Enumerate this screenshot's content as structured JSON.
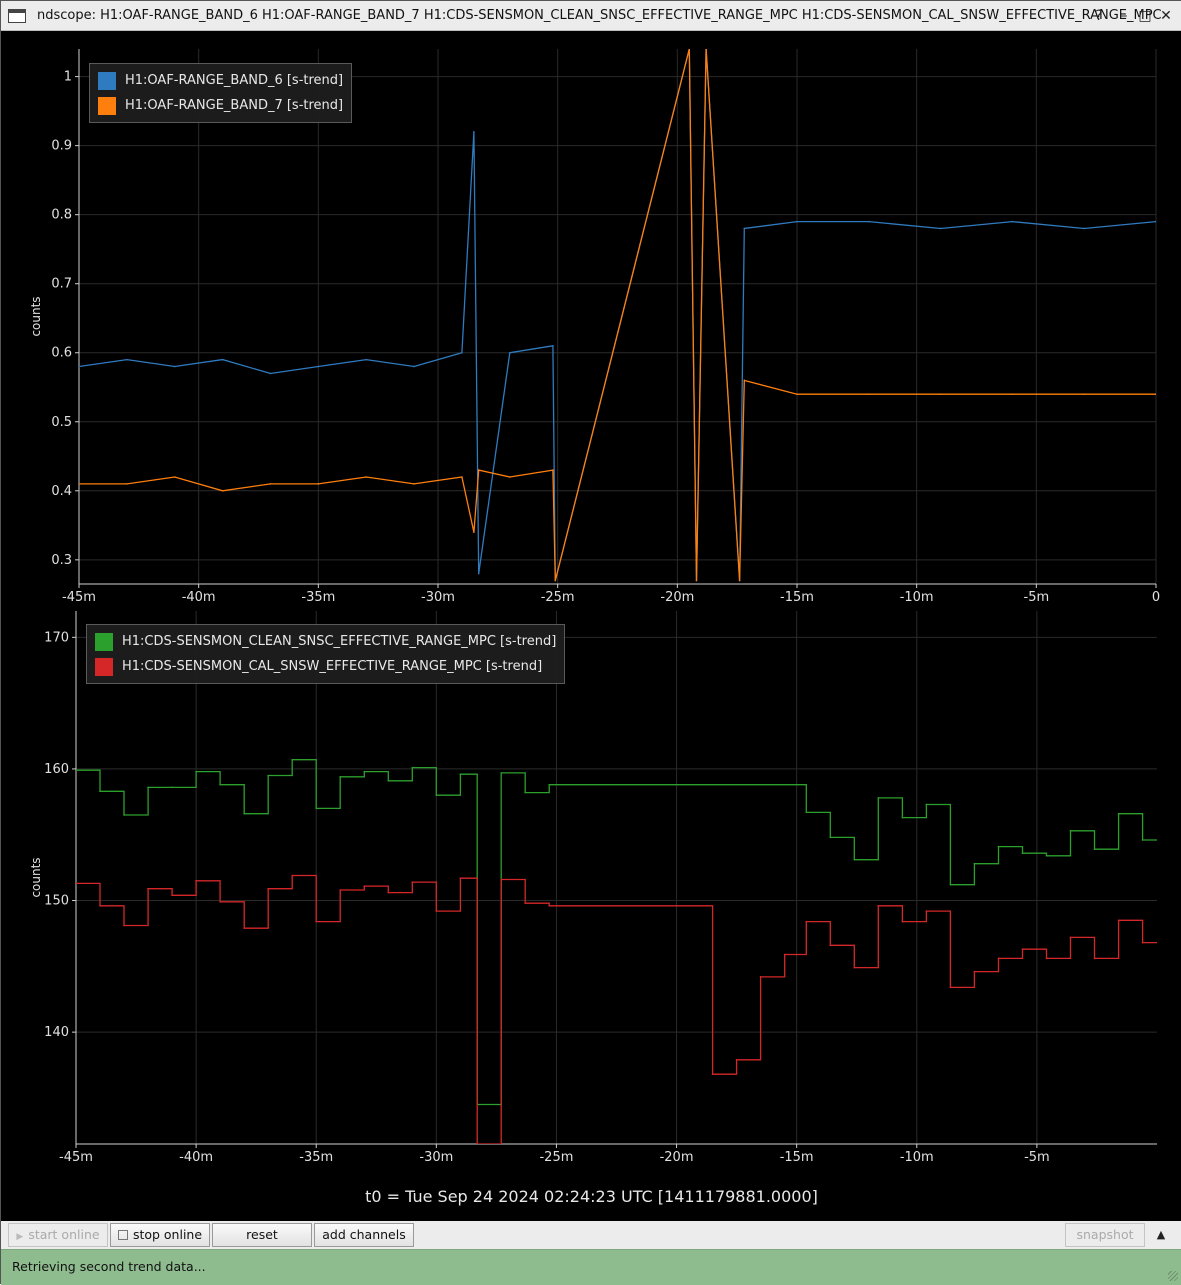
{
  "window": {
    "title": "ndscope: H1:OAF-RANGE_BAND_6 H1:OAF-RANGE_BAND_7 H1:CDS-SENSMON_CLEAN_SNSC_EFFECTIVE_RANGE_MPC H1:CDS-SENSMON_CAL_SNSW_EFFECTIVE_RANGE_MPC",
    "controls": [
      "?",
      "–",
      "□",
      "✕"
    ]
  },
  "t0_label": "t0 = Tue Sep 24 2024 02:24:23 UTC [1411179881.0000]",
  "toolbar": {
    "start_online": "start online",
    "stop_online": "stop online",
    "reset": "reset",
    "add_channels": "add channels",
    "snapshot": "snapshot"
  },
  "status": "Retrieving second trend data...",
  "colors": {
    "band6": "#2f7bbf",
    "band7": "#ff7f0e",
    "clean": "#2ca02c",
    "cal": "#d62728",
    "grid": "#2a2a2a",
    "axis": "#cfcfcf",
    "status_bg": "#8fbc8f"
  },
  "chart_data": [
    {
      "type": "line",
      "ylabel": "counts",
      "xlim": [
        -45,
        0
      ],
      "ylim": [
        0.265,
        1.04
      ],
      "x_tick_labels": [
        "-45m",
        "-40m",
        "-35m",
        "-30m",
        "-25m",
        "-20m",
        "-15m",
        "-10m",
        "-5m",
        "0"
      ],
      "x_tick_values": [
        -45,
        -40,
        -35,
        -30,
        -25,
        -20,
        -15,
        -10,
        -5,
        0
      ],
      "y_ticks": [
        0.3,
        0.4,
        0.5,
        0.6,
        0.7,
        0.8,
        0.9,
        1
      ],
      "y_tick_labels": [
        "0.3",
        "0.4",
        "0.5",
        "0.6",
        "0.7",
        "0.8",
        "0.9",
        "1"
      ],
      "grid": true,
      "legend_position": "top-left",
      "series": [
        {
          "name": "H1:OAF-RANGE_BAND_6 [s-trend]",
          "color": "#2f7bbf",
          "x": [
            -45,
            -43,
            -41,
            -39,
            -37,
            -35,
            -33,
            -31,
            -29,
            -28.5,
            -28.3,
            -27,
            -25.2,
            -25.1,
            -19.5,
            -19.2,
            -18.8,
            -17.4,
            -17.2,
            -15,
            -12,
            -9,
            -6,
            -3,
            0
          ],
          "y": [
            0.58,
            0.59,
            0.58,
            0.59,
            0.57,
            0.58,
            0.59,
            0.58,
            0.6,
            0.92,
            0.28,
            0.6,
            0.61,
            0.27,
            1.04,
            0.27,
            1.04,
            0.27,
            0.78,
            0.79,
            0.79,
            0.78,
            0.79,
            0.78,
            0.79
          ]
        },
        {
          "name": "H1:OAF-RANGE_BAND_7 [s-trend]",
          "color": "#ff7f0e",
          "x": [
            -45,
            -43,
            -41,
            -39,
            -37,
            -35,
            -33,
            -31,
            -29,
            -28.5,
            -28.3,
            -27,
            -25.2,
            -25.1,
            -19.5,
            -19.2,
            -18.8,
            -17.4,
            -17.2,
            -15,
            -12,
            -9,
            -6,
            -3,
            0
          ],
          "y": [
            0.41,
            0.41,
            0.42,
            0.4,
            0.41,
            0.41,
            0.42,
            0.41,
            0.42,
            0.34,
            0.43,
            0.42,
            0.43,
            0.27,
            1.04,
            0.27,
            1.04,
            0.27,
            0.56,
            0.54,
            0.54,
            0.54,
            0.54,
            0.54,
            0.54
          ]
        }
      ]
    },
    {
      "type": "line",
      "ylabel": "counts",
      "xlim": [
        -45,
        0
      ],
      "ylim": [
        131.5,
        172
      ],
      "x_tick_labels": [
        "-45m",
        "-40m",
        "-35m",
        "-30m",
        "-25m",
        "-20m",
        "-15m",
        "-10m",
        "-5m"
      ],
      "x_tick_values": [
        -45,
        -40,
        -35,
        -30,
        -25,
        -20,
        -15,
        -10,
        -5
      ],
      "y_ticks": [
        140,
        150,
        160,
        170
      ],
      "y_tick_labels": [
        "140",
        "150",
        "160",
        "170"
      ],
      "grid": true,
      "legend_position": "top-left",
      "series": [
        {
          "name": "H1:CDS-SENSMON_CLEAN_SNSC_EFFECTIVE_RANGE_MPC [s-trend]",
          "color": "#2ca02c",
          "x": [
            -45,
            -44,
            -43,
            -42,
            -41,
            -40,
            -39,
            -38,
            -37,
            -36,
            -35,
            -34,
            -33,
            -32,
            -31,
            -30,
            -29,
            -28.3,
            -27.3,
            -26.3,
            -25.3,
            -14.6,
            -13.6,
            -12.6,
            -11.6,
            -10.6,
            -9.6,
            -8.6,
            -7.6,
            -6.6,
            -5.6,
            -4.6,
            -3.6,
            -2.6,
            -1.6,
            -0.6
          ],
          "y": [
            159.9,
            158.3,
            156.5,
            158.6,
            158.6,
            159.8,
            158.8,
            156.6,
            159.5,
            160.7,
            157,
            159.4,
            159.8,
            159.1,
            160.1,
            158,
            159.6,
            134.5,
            159.7,
            158.2,
            158.8,
            156.7,
            154.8,
            153.1,
            157.8,
            156.3,
            157.3,
            151.2,
            152.8,
            154.1,
            153.6,
            153.4,
            155.3,
            153.9,
            156.6,
            154.6
          ]
        },
        {
          "name": "H1:CDS-SENSMON_CAL_SNSW_EFFECTIVE_RANGE_MPC [s-trend]",
          "color": "#d62728",
          "x": [
            -45,
            -44,
            -43,
            -42,
            -41,
            -40,
            -39,
            -38,
            -37,
            -36,
            -35,
            -34,
            -33,
            -32,
            -31,
            -30,
            -29,
            -28.3,
            -27.3,
            -26.3,
            -25.3,
            -18.5,
            -17.5,
            -16.5,
            -15.5,
            -14.6,
            -13.6,
            -12.6,
            -11.6,
            -10.6,
            -9.6,
            -8.6,
            -7.6,
            -6.6,
            -5.6,
            -4.6,
            -3.6,
            -2.6,
            -1.6,
            -0.6
          ],
          "y": [
            151.3,
            149.6,
            148.1,
            150.9,
            150.4,
            151.5,
            149.9,
            147.9,
            150.9,
            151.9,
            148.4,
            150.8,
            151.1,
            150.6,
            151.4,
            149.2,
            151.7,
            131.5,
            151.6,
            149.8,
            149.6,
            136.8,
            137.9,
            144.2,
            145.9,
            148.4,
            146.6,
            144.9,
            149.6,
            148.4,
            149.2,
            143.4,
            144.6,
            145.6,
            146.3,
            145.6,
            147.2,
            145.6,
            148.5,
            146.8
          ]
        }
      ]
    }
  ]
}
